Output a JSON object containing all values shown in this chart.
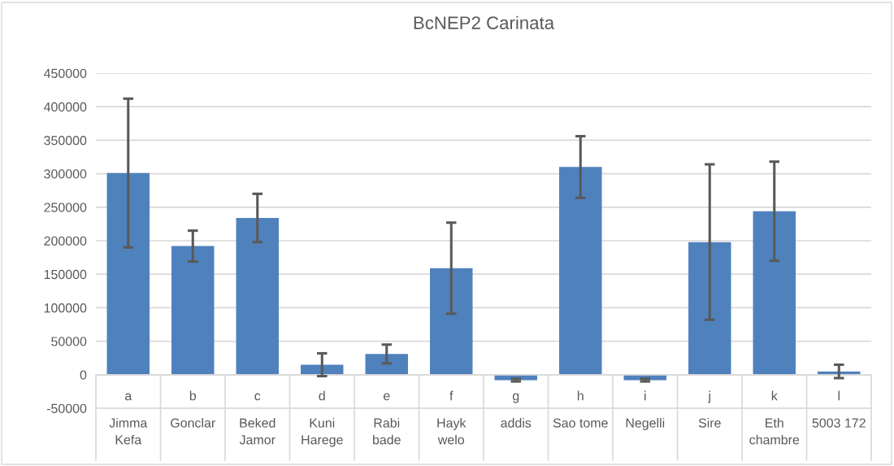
{
  "chart_data": {
    "type": "bar",
    "title": "BcNEP2 Carinata",
    "categories": [
      "a",
      "b",
      "c",
      "d",
      "e",
      "f",
      "g",
      "h",
      "i",
      "j",
      "k",
      "l"
    ],
    "values": [
      301000,
      192000,
      234000,
      15000,
      31000,
      159000,
      -8000,
      310000,
      -8000,
      198000,
      244000,
      5000
    ],
    "errors": [
      111000,
      23000,
      36000,
      17000,
      14000,
      68000,
      2000,
      46000,
      2000,
      116000,
      74000,
      10000
    ],
    "color": "#4f81bd",
    "ylim": [
      -50000,
      450000
    ],
    "yticks": [
      -50000,
      0,
      50000,
      100000,
      150000,
      200000,
      250000,
      300000,
      350000,
      400000,
      450000
    ],
    "grid": "y",
    "annotations": [
      "Jimma\nKefa",
      "Gonclar",
      "Beked\nJamor",
      "Kuni\nHarege",
      "Rabi\nbade",
      "Hayk\nwelo",
      "addis",
      "Sao tome",
      "Negelli",
      "Sire",
      "Eth\nchambre",
      "5003 172"
    ]
  }
}
